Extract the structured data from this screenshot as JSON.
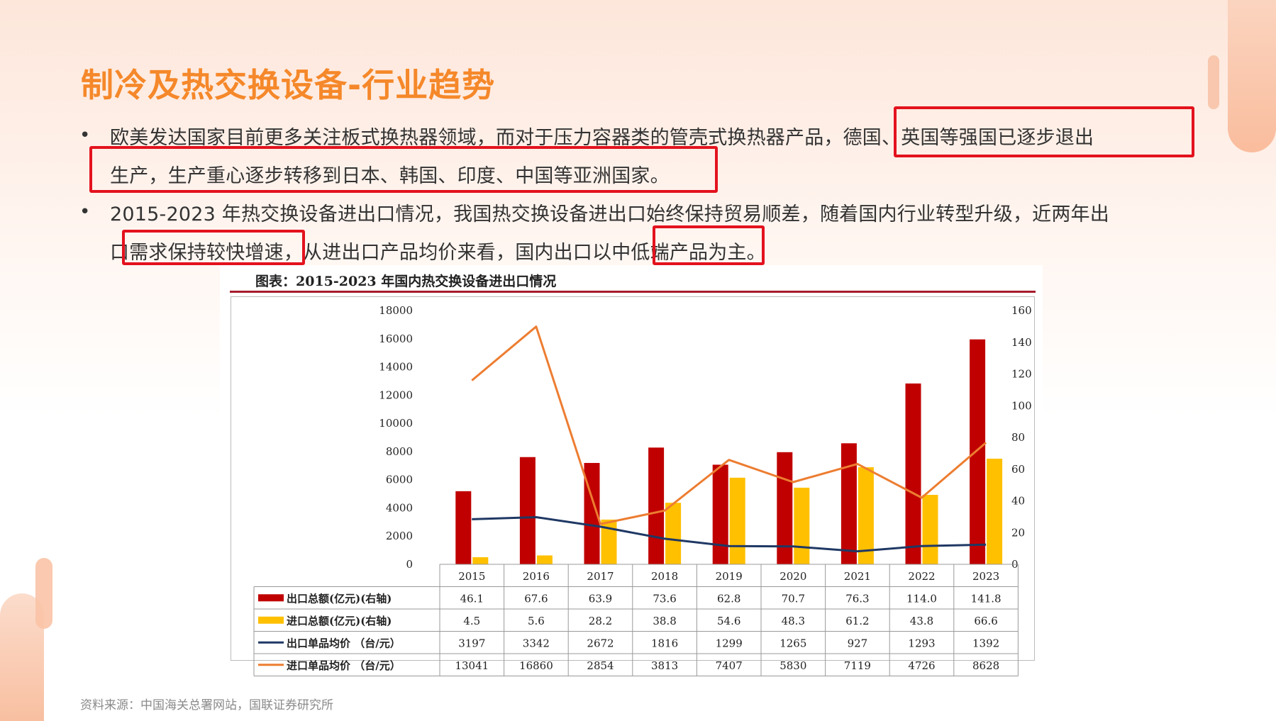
{
  "slide": {
    "title": "制冷及热交换设备-行业趋势",
    "bullet_symbol": "•",
    "paragraph1": {
      "line1_prefix": "欧美发达国家目前更多关注板式换热器领域，而对于压力容器类的管壳式换热器产品，",
      "line1_highlight": "德国、英国等强国已逐步退出",
      "line2": "生产，生产重心逐步转移到日本、韩国、印度、中国等亚洲国家。"
    },
    "paragraph2": {
      "line1": "2015-2023 年热交换设备进出口情况，我国热交换设备进出口始终保持贸易顺差，随着国内行业转型升级，近两年出",
      "line2_a": "口",
      "line2_highlight1": "需求保持较快增速",
      "line2_b": "，从进出口产品均价来看，国内出口以",
      "line2_highlight2": "中低端产品",
      "line2_c": "为主。"
    },
    "source": "资料来源：中国海关总署网站，国联证券研究所"
  },
  "colors": {
    "title": "#f5882a",
    "highlight_box": "#e3121e",
    "export_total": "#c00000",
    "import_total": "#ffc000",
    "export_unit_price": "#1f3864",
    "import_unit_price": "#ed7d31"
  },
  "chart_data": {
    "type": "bar",
    "title": "图表：2015-2023 年国内热交换设备进出口情况",
    "categories": [
      "2015",
      "2016",
      "2017",
      "2018",
      "2019",
      "2020",
      "2021",
      "2022",
      "2023"
    ],
    "left_axis": {
      "ticks": [
        "18000",
        "16000",
        "14000",
        "12000",
        "10000",
        "8000",
        "6000",
        "4000",
        "2000",
        "0"
      ],
      "ylim": [
        0,
        18000
      ]
    },
    "right_axis": {
      "ticks": [
        "160",
        "140",
        "120",
        "100",
        "80",
        "60",
        "40",
        "20",
        "0"
      ],
      "ylim": [
        0,
        160
      ]
    },
    "series": [
      {
        "name": "出口总额(亿元)(右轴)",
        "kind": "bar",
        "axis": "right",
        "color": "#c00000",
        "values": [
          46.1,
          67.6,
          63.9,
          73.6,
          62.8,
          70.7,
          76.3,
          114.0,
          141.8
        ],
        "labels": [
          "46.1",
          "67.6",
          "63.9",
          "73.6",
          "62.8",
          "70.7",
          "76.3",
          "114.0",
          "141.8"
        ]
      },
      {
        "name": "进口总额(亿元)(右轴)",
        "kind": "bar",
        "axis": "right",
        "color": "#ffc000",
        "values": [
          4.5,
          5.6,
          28.2,
          38.8,
          54.6,
          48.3,
          61.2,
          43.8,
          66.6
        ],
        "labels": [
          "4.5",
          "5.6",
          "28.2",
          "38.8",
          "54.6",
          "48.3",
          "61.2",
          "43.8",
          "66.6"
        ]
      },
      {
        "name": "出口单品均价 （台/元）",
        "kind": "line",
        "axis": "left",
        "color": "#1f3864",
        "values": [
          3197,
          3342,
          2672,
          1816,
          1299,
          1265,
          927,
          1293,
          1392
        ],
        "labels": [
          "3197",
          "3342",
          "2672",
          "1816",
          "1299",
          "1265",
          "927",
          "1293",
          "1392"
        ]
      },
      {
        "name": "进口单品均价 （台/元）",
        "kind": "line",
        "axis": "left",
        "color": "#ed7d31",
        "values": [
          13041,
          16860,
          2854,
          3813,
          7407,
          5830,
          7119,
          4726,
          8628
        ],
        "labels": [
          "13041",
          "16860",
          "2854",
          "3813",
          "7407",
          "5830",
          "7119",
          "4726",
          "8628"
        ]
      }
    ],
    "grid": false,
    "legend": "data-table"
  }
}
